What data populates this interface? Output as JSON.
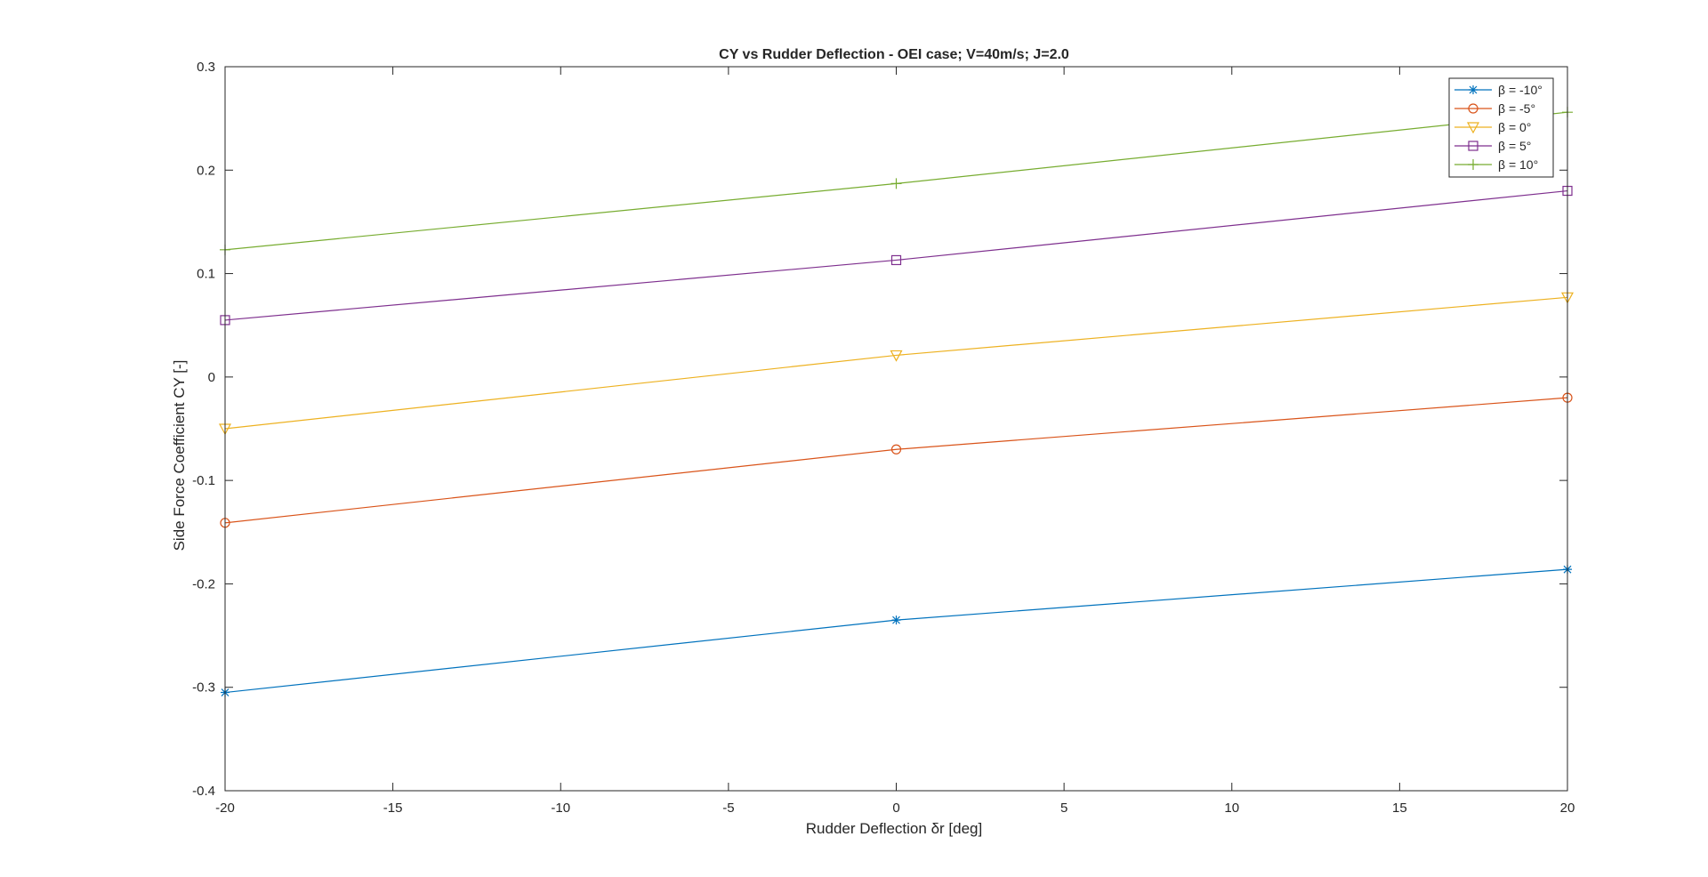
{
  "chart_data": {
    "type": "line",
    "title": "CY vs Rudder Deflection - OEI case; V=40m/s; J=2.0",
    "xlabel": "Rudder Deflection δr [deg]",
    "ylabel": "Side Force Coefficient CY [-]",
    "xlim": [
      -20,
      20
    ],
    "ylim": [
      -0.4,
      0.3
    ],
    "x_ticks": [
      -20,
      -15,
      -10,
      -5,
      0,
      5,
      10,
      15,
      20
    ],
    "x_tick_labels": [
      "-20",
      "-15",
      "-10",
      "-5",
      "0",
      "5",
      "10",
      "15",
      "20"
    ],
    "y_ticks": [
      -0.4,
      -0.3,
      -0.2,
      -0.1,
      0,
      0.1,
      0.2,
      0.3
    ],
    "y_tick_labels": [
      "-0.4",
      "-0.3",
      "-0.2",
      "-0.1",
      "0",
      "0.1",
      "0.2",
      "0.3"
    ],
    "grid": false,
    "legend_position": "top-right",
    "x": [
      -20,
      0,
      20
    ],
    "series": [
      {
        "name": "β = -10°",
        "values": [
          -0.305,
          -0.235,
          -0.186
        ],
        "color": "#0072BD",
        "marker": "asterisk"
      },
      {
        "name": "β = -5°",
        "values": [
          -0.141,
          -0.07,
          -0.02
        ],
        "color": "#D95319",
        "marker": "circle"
      },
      {
        "name": "β = 0°",
        "values": [
          -0.05,
          0.021,
          0.077
        ],
        "color": "#EDB120",
        "marker": "triangle-down"
      },
      {
        "name": "β = 5°",
        "values": [
          0.055,
          0.113,
          0.18
        ],
        "color": "#7E2F8E",
        "marker": "square"
      },
      {
        "name": "β = 10°",
        "values": [
          0.123,
          0.187,
          0.256
        ],
        "color": "#77AC30",
        "marker": "plus"
      }
    ]
  }
}
